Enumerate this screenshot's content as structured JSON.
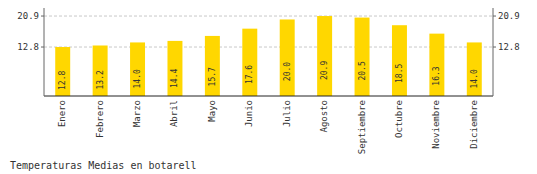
{
  "chart_data": {
    "type": "bar",
    "title": "Temperaturas Medias en botarell",
    "categories": [
      "Enero",
      "Febrero",
      "Marzo",
      "Abril",
      "Mayo",
      "Junio",
      "Julio",
      "Agosto",
      "Septiembre",
      "Octubre",
      "Noviembre",
      "Diciembre"
    ],
    "values": [
      12.8,
      13.2,
      14.0,
      14.4,
      15.7,
      17.6,
      20.0,
      20.9,
      20.5,
      18.5,
      16.3,
      14.0
    ],
    "value_labels": [
      "12.8",
      "13.2",
      "14.0",
      "14.4",
      "15.7",
      "17.6",
      "20.0",
      "20.9",
      "20.5",
      "18.5",
      "16.3",
      "14.0"
    ],
    "color": "#FFD700",
    "ylim": [
      0,
      23.0
    ],
    "yticks": [
      12.8,
      20.9
    ],
    "grid": true,
    "data_labels": true
  }
}
